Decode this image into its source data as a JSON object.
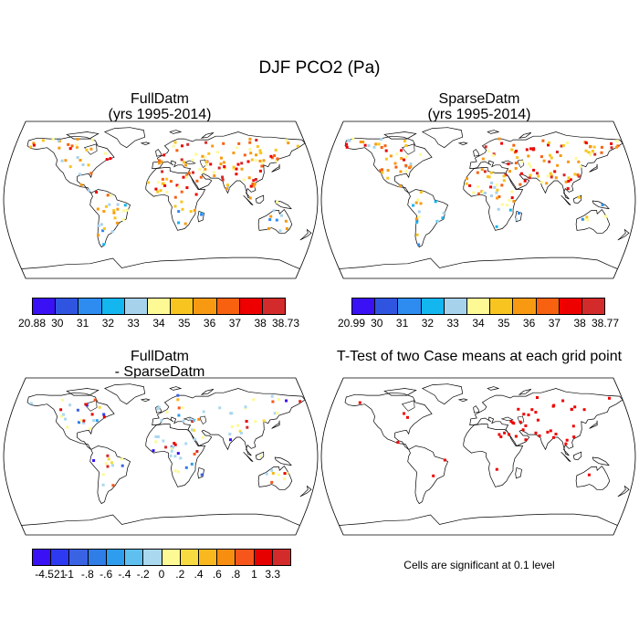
{
  "title": "DJF PCO2 (Pa)",
  "panels": [
    {
      "id": "full",
      "line1": "FullDatm",
      "line2": "(yrs 1995-2014)"
    },
    {
      "id": "sparse",
      "line1": "SparseDatm",
      "line2": "(yrs 1995-2014)"
    },
    {
      "id": "diff",
      "line1": "FullDatm",
      "line2": "- SparseDatm"
    },
    {
      "id": "ttest",
      "line1": "T-Test of two Case means at each grid point",
      "line2": ""
    }
  ],
  "colorbars": [
    {
      "id": "full",
      "labels": [
        "20.88",
        "30",
        "31",
        "32",
        "33",
        "34",
        "35",
        "36",
        "37",
        "38",
        "38.73"
      ],
      "colors": [
        "#3a10f5",
        "#2f55e0",
        "#2e8cf0",
        "#13b6ef",
        "#a7d2ec",
        "#fdfa96",
        "#f8c520",
        "#f79a12",
        "#f7610f",
        "#ee0000",
        "#d32b2b"
      ]
    },
    {
      "id": "sparse",
      "labels": [
        "20.99",
        "30",
        "31",
        "32",
        "33",
        "34",
        "35",
        "36",
        "37",
        "38",
        "38.77"
      ],
      "colors": [
        "#3a10f5",
        "#2f55e0",
        "#2e8cf0",
        "#13b6ef",
        "#a7d2ec",
        "#fdfa96",
        "#f8c520",
        "#f79a12",
        "#f7610f",
        "#ee0000",
        "#d32b2b"
      ]
    },
    {
      "id": "diff",
      "labels": [
        "-4.521",
        "-1",
        "-.8",
        "-.6",
        "-.4",
        "-.2",
        "0",
        ".2",
        ".4",
        ".6",
        ".8",
        "1",
        "3.3"
      ],
      "colors": [
        "#3a10f5",
        "#2e3af2",
        "#3a63e4",
        "#2f7de6",
        "#2e9ded",
        "#5fc0f0",
        "#a9d8ef",
        "#fdfa96",
        "#f8da42",
        "#f8b81e",
        "#f78e10",
        "#f6561c",
        "#e60000",
        "#d32b2b"
      ]
    }
  ],
  "significance_note": "Cells are significant at 0.1 level"
}
